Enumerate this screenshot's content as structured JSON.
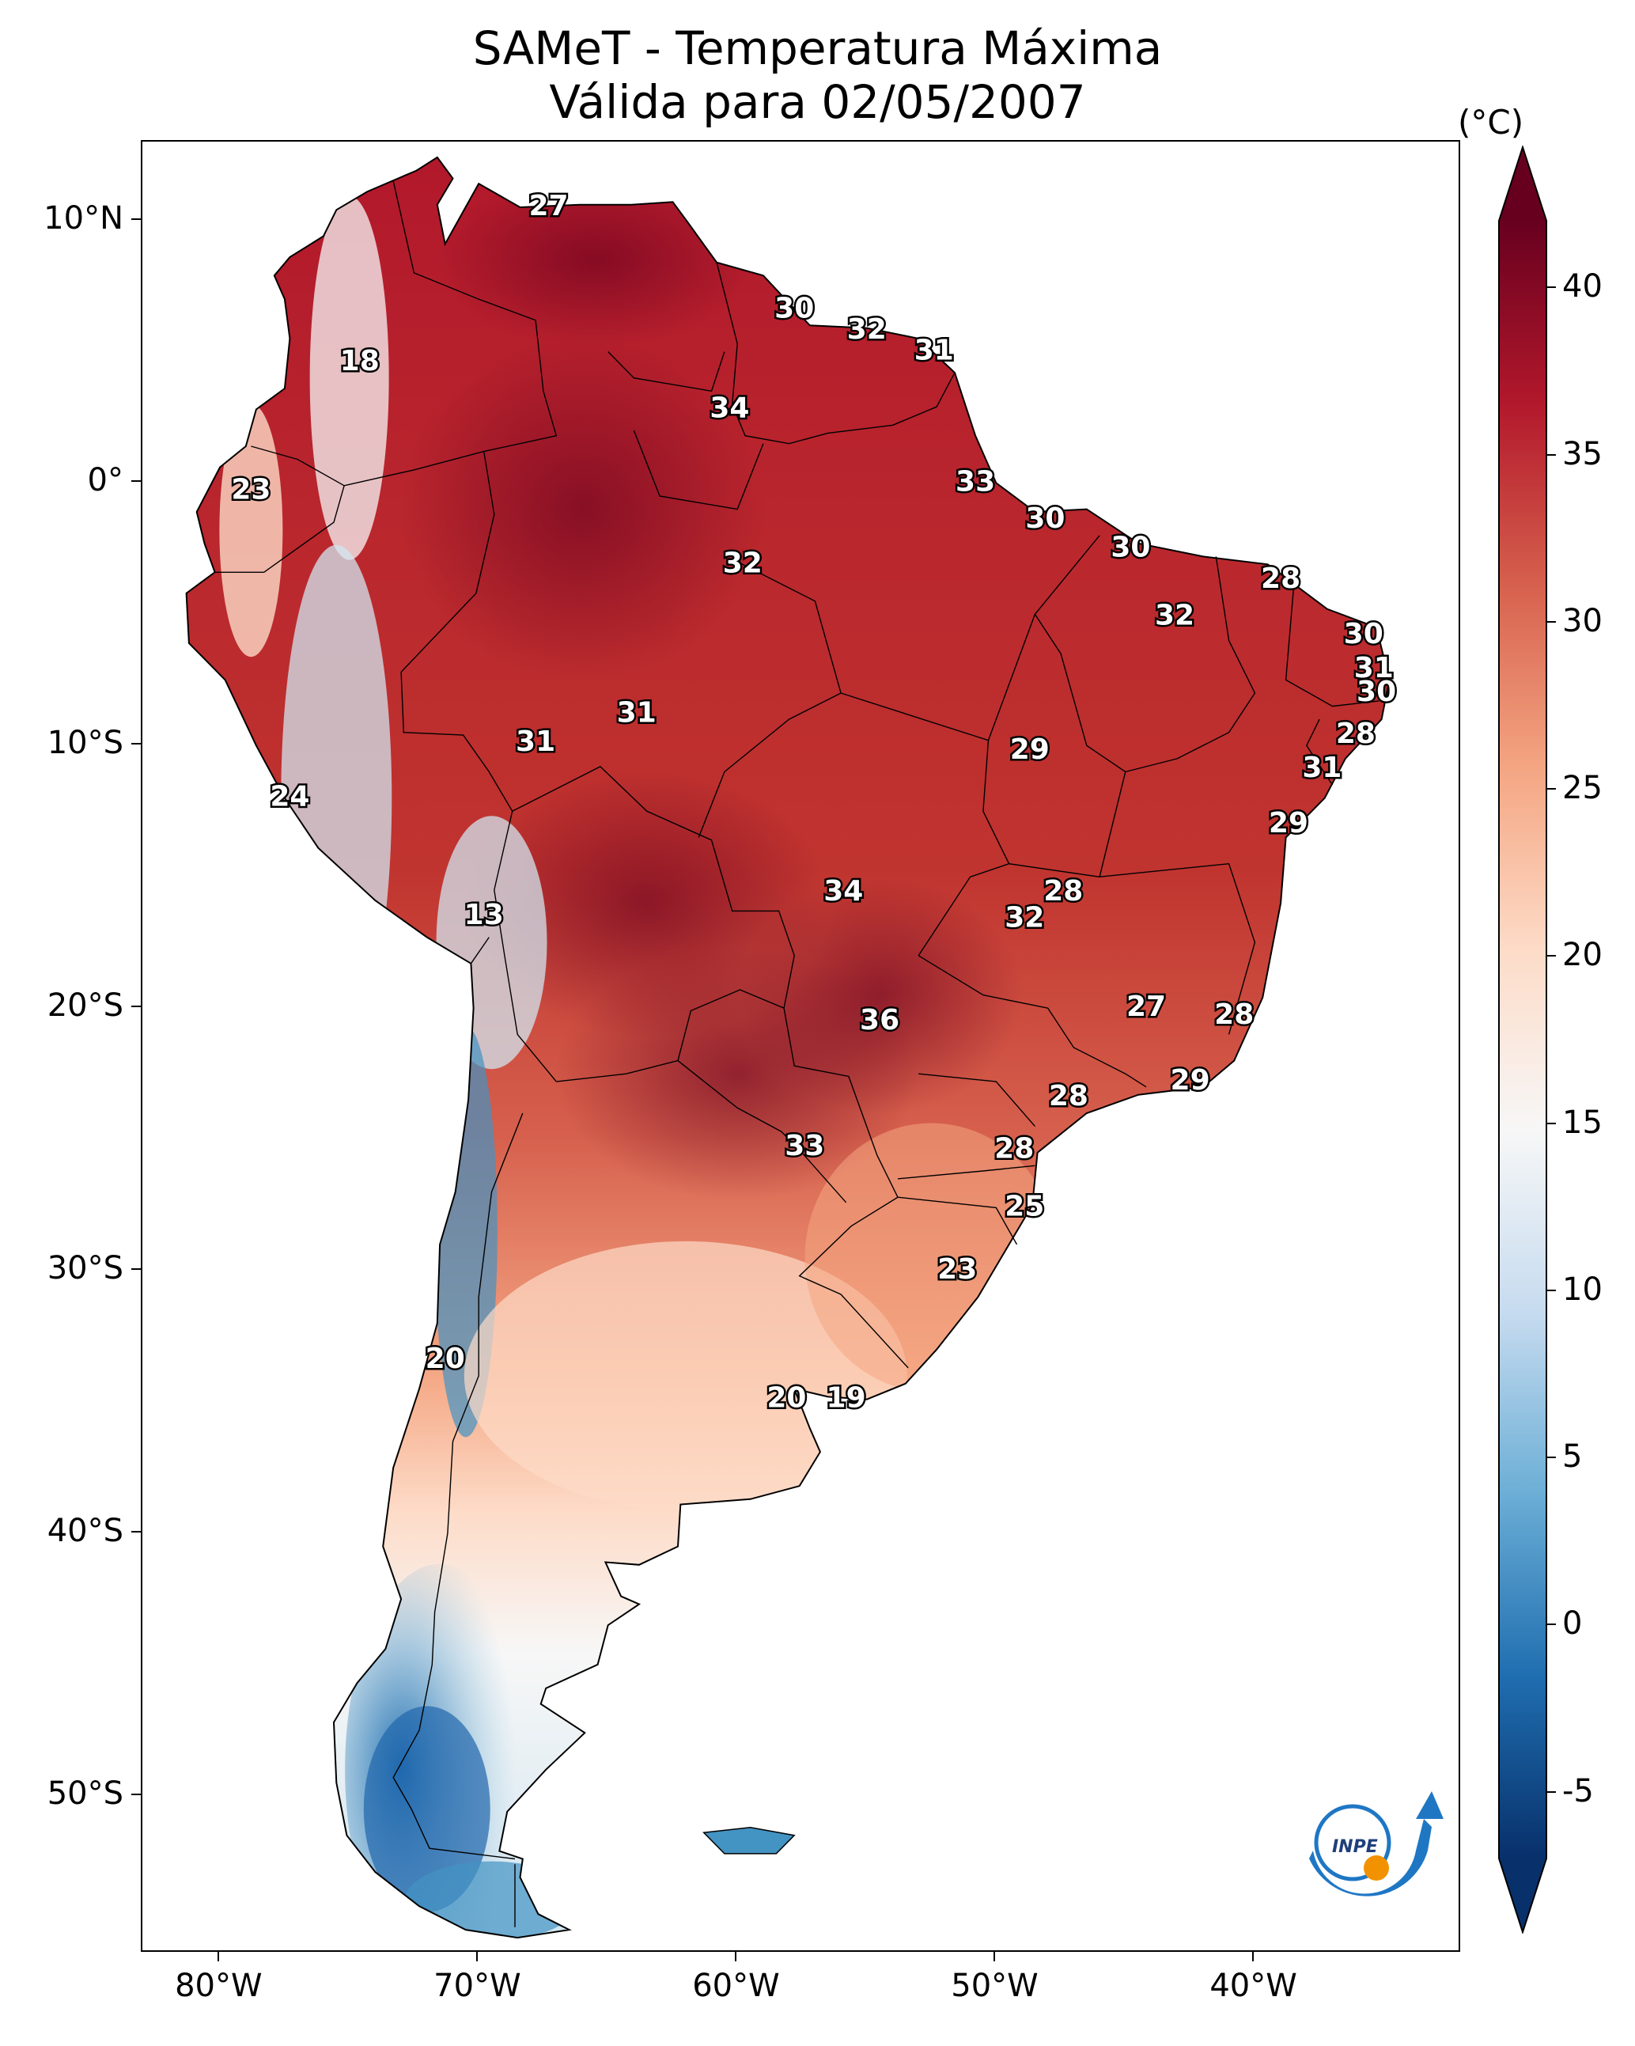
{
  "title": {
    "line1": "SAMeT - Temperatura Máxima",
    "line2": "Válida para 02/05/2007"
  },
  "axes": {
    "lon_labels": [
      "80°W",
      "70°W",
      "60°W",
      "50°W",
      "40°W"
    ],
    "lat_labels": [
      "10°N",
      "0°",
      "10°S",
      "20°S",
      "30°S",
      "40°S",
      "50°S"
    ]
  },
  "colorbar": {
    "unit": "(°C)",
    "ticks": [
      "40",
      "35",
      "30",
      "25",
      "20",
      "15",
      "10",
      "5",
      "0",
      "-5"
    ],
    "min": -7,
    "max": 42,
    "colors": [
      "#08306b",
      "#1f6eb0",
      "#6baed6",
      "#c6dbef",
      "#f7f7f7",
      "#fddbc7",
      "#f4a582",
      "#d6604d",
      "#b2182b",
      "#67001f"
    ]
  },
  "station_labels": [
    {
      "value": "27",
      "lon": -67.3,
      "lat": 10.5
    },
    {
      "value": "30",
      "lon": -57.8,
      "lat": 6.6
    },
    {
      "value": "32",
      "lon": -55.0,
      "lat": 5.8
    },
    {
      "value": "31",
      "lon": -52.4,
      "lat": 5.0
    },
    {
      "value": "18",
      "lon": -74.6,
      "lat": 4.6
    },
    {
      "value": "34",
      "lon": -60.3,
      "lat": 2.8
    },
    {
      "value": "33",
      "lon": -50.8,
      "lat": 0.0
    },
    {
      "value": "23",
      "lon": -78.8,
      "lat": -0.3
    },
    {
      "value": "30",
      "lon": -48.1,
      "lat": -1.4
    },
    {
      "value": "30",
      "lon": -44.8,
      "lat": -2.5
    },
    {
      "value": "32",
      "lon": -59.8,
      "lat": -3.1
    },
    {
      "value": "28",
      "lon": -39.0,
      "lat": -3.7
    },
    {
      "value": "32",
      "lon": -43.1,
      "lat": -5.1
    },
    {
      "value": "30",
      "lon": -35.8,
      "lat": -5.8
    },
    {
      "value": "31",
      "lon": -35.4,
      "lat": -7.1
    },
    {
      "value": "30",
      "lon": -35.3,
      "lat": -8.0
    },
    {
      "value": "31",
      "lon": -63.9,
      "lat": -8.8
    },
    {
      "value": "28",
      "lon": -36.1,
      "lat": -9.6
    },
    {
      "value": "31",
      "lon": -67.8,
      "lat": -9.9
    },
    {
      "value": "29",
      "lon": -48.7,
      "lat": -10.2
    },
    {
      "value": "31",
      "lon": -37.4,
      "lat": -10.9
    },
    {
      "value": "24",
      "lon": -77.3,
      "lat": -12.0
    },
    {
      "value": "29",
      "lon": -38.7,
      "lat": -13.0
    },
    {
      "value": "34",
      "lon": -55.9,
      "lat": -15.6
    },
    {
      "value": "28",
      "lon": -47.4,
      "lat": -15.6
    },
    {
      "value": "32",
      "lon": -48.9,
      "lat": -16.6
    },
    {
      "value": "13",
      "lon": -69.8,
      "lat": -16.5
    },
    {
      "value": "27",
      "lon": -44.2,
      "lat": -20.0
    },
    {
      "value": "36",
      "lon": -54.5,
      "lat": -20.5
    },
    {
      "value": "28",
      "lon": -40.8,
      "lat": -20.3
    },
    {
      "value": "29",
      "lon": -42.5,
      "lat": -22.8
    },
    {
      "value": "28",
      "lon": -47.2,
      "lat": -23.4
    },
    {
      "value": "33",
      "lon": -57.4,
      "lat": -25.3
    },
    {
      "value": "28",
      "lon": -49.3,
      "lat": -25.4
    },
    {
      "value": "25",
      "lon": -48.9,
      "lat": -27.6
    },
    {
      "value": "23",
      "lon": -51.5,
      "lat": -30.0
    },
    {
      "value": "20",
      "lon": -71.3,
      "lat": -33.4
    },
    {
      "value": "20",
      "lon": -58.1,
      "lat": -34.9
    },
    {
      "value": "19",
      "lon": -55.8,
      "lat": -34.9
    }
  ],
  "logo": {
    "text": "INPE"
  }
}
